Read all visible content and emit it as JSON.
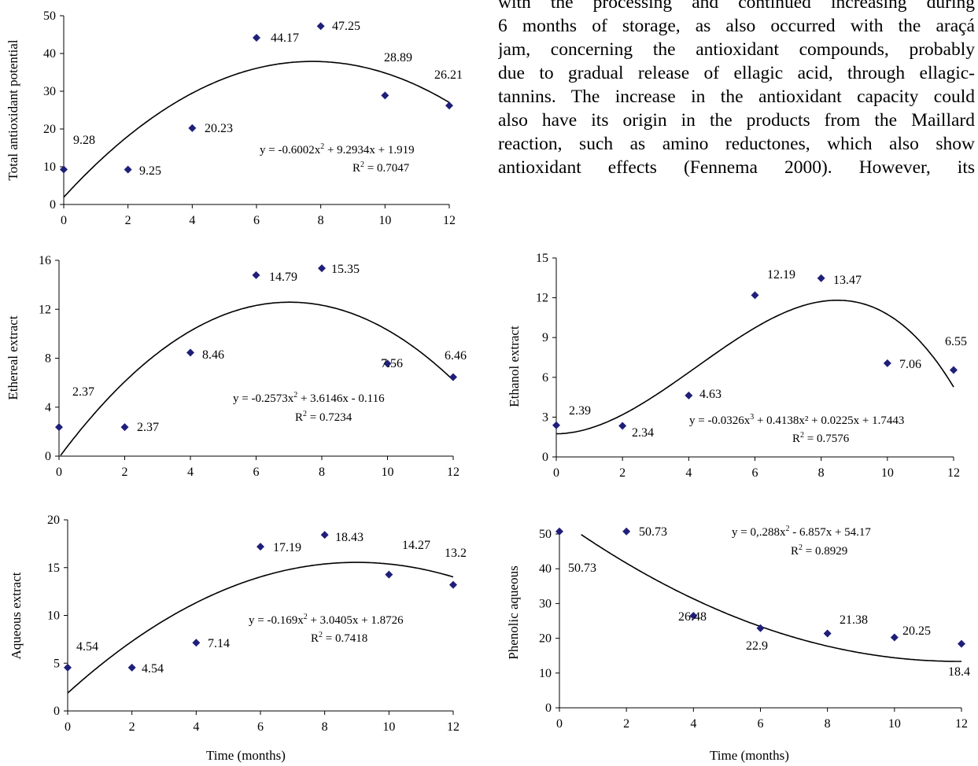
{
  "body_text_lines": [
    "with the processing and continued increasing during",
    "6 months of storage, as also occurred with the araçá",
    "jam, concerning the antioxidant compounds, probably",
    "due to gradual release of ellagic acid, through ellagic-",
    "tannins. The increase in the antioxidant capacity could",
    "also have its origin in the products from the Maillard",
    "reaction, such as amino reductones, which also show",
    "antioxidant effects (Fennema 2000). However, its"
  ],
  "x_axis_title": "Time (months)",
  "marker_color": "#1f1f7a",
  "chart_data": [
    {
      "type": "scatter",
      "ylabel": "Total antioxidant potential",
      "xlim": [
        0,
        12
      ],
      "ylim": [
        0,
        50
      ],
      "xticks": [
        0,
        2,
        4,
        6,
        8,
        10,
        12
      ],
      "yticks": [
        0,
        10,
        20,
        30,
        40,
        50
      ],
      "x": [
        0,
        2,
        4,
        6,
        8,
        10,
        12
      ],
      "y": [
        9.28,
        9.25,
        20.23,
        44.17,
        47.25,
        28.89,
        26.21
      ],
      "point_labels": [
        "9.28",
        "9.25",
        "20.23",
        "44.17",
        "47.25",
        "28.89",
        "26.21"
      ],
      "trend_coefficients": [
        -0.6002,
        9.2934,
        1.919
      ],
      "equation": {
        "prefix": "y = -0.6002x",
        "exp": "2",
        "suffix": " + 9.2934x + 1.919"
      },
      "r2_label": "R",
      "r2_exp": "2",
      "r2_value": " = 0.7047"
    },
    {
      "type": "scatter",
      "ylabel": "Ethereal extract",
      "xlim": [
        0,
        12
      ],
      "ylim": [
        0,
        16
      ],
      "xticks": [
        0,
        2,
        4,
        6,
        8,
        10,
        12
      ],
      "yticks": [
        0,
        4,
        8,
        12,
        16
      ],
      "x": [
        0,
        2,
        4,
        6,
        8,
        10,
        12
      ],
      "y": [
        2.37,
        2.37,
        8.46,
        14.79,
        15.35,
        7.56,
        6.46
      ],
      "point_labels": [
        "2.37",
        "2.37",
        "8.46",
        "14.79",
        "15.35",
        "7.56",
        "6.46"
      ],
      "trend_coefficients": [
        -0.2573,
        3.6146,
        -0.116
      ],
      "equation": {
        "prefix": "y = -0.2573x",
        "exp": "2",
        "suffix": " + 3.6146x - 0.116"
      },
      "r2_label": "R",
      "r2_exp": "2",
      "r2_value": " = 0.7234"
    },
    {
      "type": "scatter",
      "ylabel": "Ethanol extract",
      "xlim": [
        0,
        12
      ],
      "ylim": [
        0,
        15
      ],
      "xticks": [
        0,
        2,
        4,
        6,
        8,
        10,
        12
      ],
      "yticks": [
        0,
        3,
        6,
        9,
        12,
        15
      ],
      "x": [
        0,
        2,
        4,
        6,
        8,
        10,
        12
      ],
      "y": [
        2.39,
        2.34,
        4.63,
        12.19,
        13.47,
        7.06,
        6.55
      ],
      "point_labels": [
        "2.39",
        "2.34",
        "4.63",
        "12.19",
        "13.47",
        "7.06",
        "6.55"
      ],
      "trend_coefficients": [
        -0.0326,
        0.4138,
        0.0225,
        1.7443
      ],
      "equation": {
        "prefix": "y = -0.0326x",
        "exp": "3",
        "suffix": " + 0.4138x² + 0.0225x + 1.7443"
      },
      "r2_label": "R",
      "r2_exp": "2",
      "r2_value": " = 0.7576"
    },
    {
      "type": "scatter",
      "ylabel": "Aqueous extract",
      "xlim": [
        0,
        12
      ],
      "ylim": [
        0,
        20
      ],
      "xticks": [
        0,
        2,
        4,
        6,
        8,
        10,
        12
      ],
      "yticks": [
        0,
        5,
        10,
        15,
        20
      ],
      "x": [
        0,
        2,
        4,
        6,
        8,
        10,
        12
      ],
      "y": [
        4.54,
        4.54,
        7.14,
        17.19,
        18.43,
        14.27,
        13.2
      ],
      "point_labels": [
        "4.54",
        "4.54",
        "7.14",
        "17.19",
        "18.43",
        "14.27",
        "13.2"
      ],
      "trend_coefficients": [
        -0.169,
        3.0405,
        1.8726
      ],
      "equation": {
        "prefix": "y = -0.169x",
        "exp": "2",
        "suffix": " + 3.0405x + 1.8726"
      },
      "r2_label": "R",
      "r2_exp": "2",
      "r2_value": " = 0.7418"
    },
    {
      "type": "scatter",
      "ylabel": "Phenolic aqueous",
      "xlim": [
        0,
        12
      ],
      "ylim": [
        0,
        50
      ],
      "xticks": [
        0,
        2,
        4,
        6,
        8,
        10,
        12
      ],
      "yticks": [
        0,
        10,
        20,
        30,
        40,
        50
      ],
      "x": [
        0,
        2,
        4,
        6,
        8,
        10,
        12
      ],
      "y": [
        50.73,
        50.73,
        26.48,
        22.9,
        21.38,
        20.25,
        18.4
      ],
      "point_labels": [
        "50.73",
        "50.73",
        "26.48",
        "22.9",
        "21.38",
        "20.25",
        "18.4"
      ],
      "trend_coefficients": [
        0.288,
        -6.857,
        54.17
      ],
      "equation": {
        "prefix": "y = 0,.288x",
        "exp": "2",
        "suffix": " - 6.857x + 54.17"
      },
      "r2_label": "R",
      "r2_exp": "2",
      "r2_value": " = 0.8929"
    }
  ]
}
